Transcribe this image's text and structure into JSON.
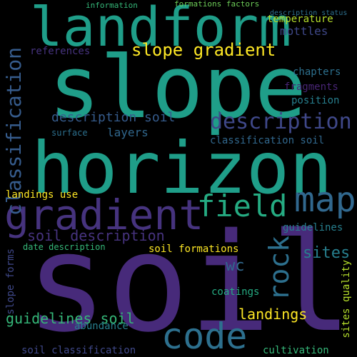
{
  "words": {
    "soil": "soil",
    "horizon": "horizon",
    "slope": "slope",
    "landform": "landform",
    "gradient": "gradient",
    "code": "code",
    "map": "map",
    "field": "field",
    "rock": "rock",
    "description": "description",
    "slope_gradient": "slope gradient",
    "classification": "classification",
    "soil_description": "soil description",
    "description_soil": "description soil",
    "guidelines_soil": "guidelines soil",
    "sites": "sites",
    "wc": "wc",
    "landings": "landings",
    "mottles": "mottles",
    "layers": "layers",
    "references": "references",
    "chapters": "chapters",
    "fragments": "fragments",
    "position": "position",
    "surface": "surface",
    "classification_soil": "classification soil",
    "landings_use": "landings use",
    "date_description": "date description",
    "soil_formations": "soil formations",
    "guidelines": "guidelines",
    "slope_forms": "slope forms",
    "coatings": "coatings",
    "abundance": "abundance",
    "soil_classification": "soil classification",
    "cultivation": "cultivation",
    "sites_quality": "sites quality",
    "temperature": "temperature",
    "information": "information",
    "formations_factors": "formations factors",
    "description_status": "description status"
  },
  "colors": {
    "background": "#000000",
    "dark_purple": "#482575",
    "purple": "#46337e",
    "indigo": "#3f4889",
    "blue": "#365c8d",
    "slate": "#31688e",
    "steel": "#2d708e",
    "teal_blue": "#277f8e",
    "teal": "#1f9e89",
    "green_teal": "#25ab82",
    "green": "#35b779",
    "light_green": "#6ece58",
    "lime": "#b5de2b",
    "yellow": "#fde725"
  }
}
